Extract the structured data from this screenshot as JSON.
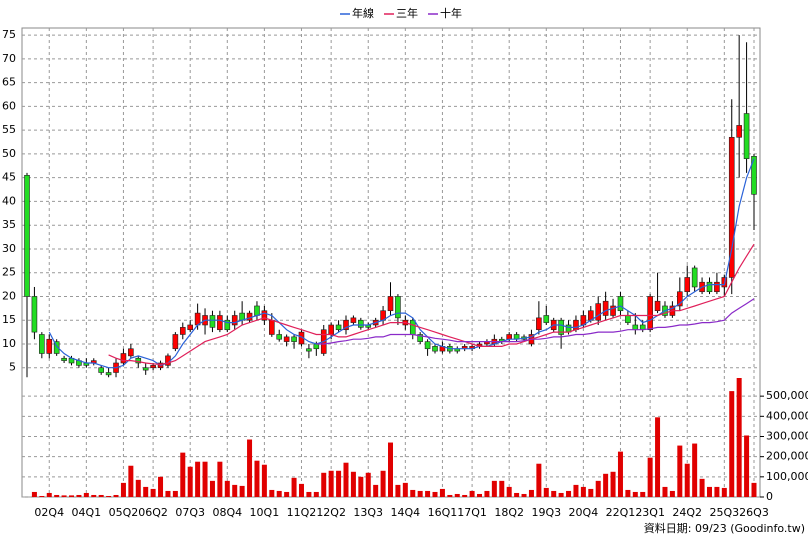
{
  "chart_data": {
    "type": "candlestick",
    "categories": [
      null,
      null,
      null,
      "02Q4",
      null,
      null,
      null,
      null,
      "04Q1",
      null,
      null,
      null,
      null,
      "05Q2",
      null,
      null,
      null,
      "06Q2",
      null,
      null,
      null,
      null,
      "07Q3",
      null,
      null,
      null,
      null,
      "08Q4",
      null,
      null,
      null,
      null,
      "10Q1",
      null,
      null,
      null,
      null,
      "11Q2",
      null,
      null,
      null,
      "12Q2",
      null,
      null,
      null,
      null,
      "13Q3",
      null,
      null,
      null,
      null,
      "14Q4",
      null,
      null,
      null,
      null,
      "16Q1",
      null,
      null,
      null,
      "17Q1",
      null,
      null,
      null,
      null,
      "18Q2",
      null,
      null,
      null,
      null,
      "19Q3",
      null,
      null,
      null,
      null,
      "20Q4",
      null,
      null,
      null,
      null,
      "22Q1",
      null,
      null,
      null,
      "23Q1",
      null,
      null,
      null,
      null,
      "24Q2",
      null,
      null,
      null,
      null,
      "25Q3",
      null,
      null,
      null,
      "26Q3"
    ],
    "open": [
      45.5,
      20,
      12,
      8,
      10.5,
      7,
      7,
      6.5,
      6,
      6,
      5,
      4,
      4,
      6,
      7.5,
      7,
      5,
      5,
      5,
      5.5,
      9,
      12,
      13,
      14,
      14,
      16,
      13,
      15,
      14,
      16.5,
      15,
      18,
      15,
      12,
      12,
      10.5,
      11.5,
      10,
      9,
      10,
      8,
      12,
      14,
      13,
      14.5,
      15,
      14,
      14,
      15,
      17,
      20,
      14,
      15,
      12,
      10.5,
      9.5,
      8.5,
      9.5,
      9,
      9,
      9,
      9.5,
      10,
      10,
      11,
      11,
      12,
      11.5,
      10,
      13,
      16,
      13,
      15,
      14,
      13,
      14,
      15,
      15,
      16,
      16,
      20,
      16,
      14,
      14,
      13,
      17,
      18,
      16,
      18,
      21,
      26,
      21,
      23,
      21,
      22,
      24,
      53.5,
      58.5,
      49.5
    ],
    "high": [
      46,
      22,
      12.5,
      12,
      11,
      7.5,
      7.5,
      7,
      7,
      7,
      5.5,
      5,
      7,
      9,
      10,
      7.5,
      6,
      6,
      6.5,
      8,
      12.5,
      14.5,
      15,
      18.5,
      17.5,
      17,
      17,
      16,
      17,
      19,
      17,
      19,
      18,
      16.5,
      13,
      12,
      12,
      13,
      10,
      10.5,
      14,
      14.5,
      15,
      16,
      16,
      15.5,
      14.5,
      15.5,
      18,
      23,
      20.5,
      16,
      15.5,
      12.5,
      11,
      10,
      10.5,
      10,
      9.5,
      10,
      10,
      10.5,
      11,
      12,
      11.5,
      12.5,
      12.5,
      12,
      13,
      19,
      18,
      15.5,
      15.5,
      15,
      16,
      17,
      18,
      20,
      21,
      19.5,
      21,
      17,
      16.5,
      15,
      20.5,
      25,
      19,
      19,
      24,
      26.5,
      26.5,
      24,
      24,
      25,
      24.5,
      61.5,
      75,
      73.5,
      50
    ],
    "low": [
      3,
      11,
      7,
      7,
      7.5,
      6,
      5.5,
      5,
      5,
      5.5,
      3.5,
      3,
      3,
      5.5,
      7,
      5,
      3.5,
      4.5,
      4.5,
      5,
      8.5,
      11,
      12.5,
      13,
      12,
      12.5,
      12.5,
      12.5,
      13,
      14,
      14.5,
      15,
      14,
      11.5,
      10.5,
      9.5,
      9,
      9.5,
      7,
      7.5,
      7.5,
      11,
      12.5,
      12,
      14,
      13,
      13,
      13.5,
      14,
      16,
      14,
      13,
      11,
      10,
      7.5,
      8,
      8,
      8,
      8,
      8.5,
      8.5,
      9,
      9.5,
      9.5,
      10,
      10.5,
      10.5,
      10.5,
      9.5,
      12,
      14,
      12.5,
      9,
      12,
      12.5,
      13.5,
      14.5,
      14,
      15,
      15.5,
      16,
      14,
      12,
      12.5,
      12.5,
      16.5,
      15.5,
      15.5,
      17,
      20,
      21,
      20.5,
      20.5,
      20.5,
      20,
      20.5,
      45,
      46,
      34
    ],
    "close": [
      20,
      12.5,
      8,
      11,
      8,
      6.5,
      6,
      5.5,
      5.5,
      6.5,
      4,
      3.5,
      6,
      8,
      9,
      6,
      4.5,
      5.5,
      6,
      7.5,
      12,
      13.5,
      14,
      16.5,
      16,
      13.5,
      16,
      13,
      16,
      15,
      16.5,
      16,
      17,
      15,
      11,
      11.5,
      10.5,
      12.5,
      8.5,
      9,
      13,
      14,
      13,
      15,
      15.5,
      13.5,
      13.5,
      15,
      17,
      20,
      15.5,
      15,
      12,
      10.5,
      9,
      8.5,
      9.5,
      8.5,
      8.5,
      9.5,
      9.5,
      10,
      10.5,
      11,
      10.5,
      12,
      11,
      11,
      12,
      15.5,
      14.5,
      15,
      12,
      12.5,
      15,
      16,
      17,
      18.5,
      19,
      18,
      17,
      14.5,
      13,
      13,
      20,
      19,
      16,
      18,
      21,
      24,
      22,
      23,
      21,
      23,
      24,
      53.5,
      56,
      49,
      41.5
    ],
    "volume": [
      0,
      25000,
      5000,
      20000,
      10000,
      8000,
      8000,
      10000,
      20000,
      10000,
      10000,
      5000,
      10000,
      70000,
      155000,
      85000,
      50000,
      40000,
      100000,
      30000,
      30000,
      220000,
      150000,
      175000,
      175000,
      80000,
      175000,
      80000,
      60000,
      55000,
      285000,
      180000,
      160000,
      35000,
      30000,
      25000,
      95000,
      65000,
      25000,
      25000,
      120000,
      130000,
      130000,
      170000,
      125000,
      100000,
      120000,
      60000,
      130000,
      270000,
      60000,
      70000,
      35000,
      30000,
      30000,
      25000,
      40000,
      10000,
      15000,
      10000,
      30000,
      15000,
      30000,
      80000,
      80000,
      50000,
      20000,
      15000,
      35000,
      165000,
      45000,
      30000,
      20000,
      30000,
      60000,
      50000,
      40000,
      80000,
      115000,
      125000,
      225000,
      35000,
      25000,
      25000,
      195000,
      395000,
      50000,
      30000,
      255000,
      165000,
      265000,
      90000,
      50000,
      50000,
      45000,
      525000,
      590000,
      305000,
      70000
    ],
    "series": [
      {
        "name": "年線",
        "color": "#2a62d8",
        "values": [
          null,
          null,
          null,
          12.5,
          9.5,
          8,
          7,
          6.5,
          6,
          6,
          5.5,
          5,
          5,
          5.5,
          7,
          7.5,
          7,
          6.5,
          5.5,
          6,
          7.5,
          10,
          12,
          14,
          15,
          15,
          15,
          14.5,
          14.5,
          15,
          15.5,
          16,
          16.5,
          16,
          14.5,
          13,
          12,
          11.5,
          10.5,
          10,
          10.5,
          11.5,
          12.5,
          13.5,
          14,
          14,
          14,
          14.5,
          15,
          16,
          16.5,
          16.5,
          15.5,
          13,
          11.5,
          10,
          9.5,
          9,
          9,
          9,
          9,
          9.5,
          9.5,
          10,
          10.5,
          11,
          11,
          11.2,
          11.5,
          12.5,
          13,
          14,
          14,
          13.5,
          13.5,
          14,
          15,
          16,
          17,
          17.5,
          18,
          17,
          16,
          14.5,
          15,
          16,
          17,
          17.5,
          18.5,
          20,
          21,
          22,
          22.5,
          22.5,
          22.5,
          30,
          39,
          45,
          49
        ]
      },
      {
        "name": "三年",
        "color": "#e0205a",
        "values": [
          null,
          null,
          null,
          null,
          null,
          null,
          null,
          null,
          null,
          null,
          null,
          7.7,
          7,
          6.5,
          6.5,
          6.3,
          6,
          5.8,
          5.7,
          6,
          6.5,
          7.5,
          8.5,
          9.5,
          10.5,
          11,
          11.5,
          12,
          13,
          14,
          14.5,
          15,
          15.5,
          15,
          14.5,
          14,
          13.5,
          13,
          12.5,
          12,
          12,
          12,
          11.5,
          11.5,
          12,
          12.5,
          13,
          13.5,
          14,
          14.5,
          14.5,
          14.5,
          14,
          13.5,
          13,
          12.5,
          12,
          11.5,
          11,
          10.5,
          10,
          9.5,
          9.5,
          9.5,
          9.5,
          10,
          10,
          10.5,
          11,
          11.5,
          12,
          12.5,
          12.5,
          12.5,
          13,
          13.5,
          14,
          14.5,
          15,
          15.5,
          16,
          16,
          16,
          16,
          16,
          16,
          16.5,
          17,
          17,
          17.5,
          18,
          18.5,
          19,
          19.5,
          20,
          23,
          26,
          28.5,
          31
        ]
      },
      {
        "name": "十年",
        "color": "#8a2ac8",
        "values": [
          null,
          null,
          null,
          null,
          null,
          null,
          null,
          null,
          null,
          null,
          null,
          null,
          null,
          null,
          null,
          null,
          null,
          null,
          null,
          null,
          null,
          null,
          null,
          null,
          null,
          null,
          null,
          null,
          null,
          null,
          null,
          null,
          null,
          null,
          null,
          null,
          null,
          null,
          null,
          10,
          10,
          10.2,
          10.5,
          10.7,
          11,
          11,
          11.2,
          11.5,
          11.5,
          12,
          12,
          12,
          12,
          11.7,
          11.5,
          11.2,
          11,
          10.8,
          10.5,
          10.5,
          10.5,
          10.5,
          10.5,
          10.5,
          10.5,
          10.5,
          10.5,
          10.7,
          11,
          11,
          11.2,
          11.5,
          11.5,
          11.7,
          12,
          12,
          12.2,
          12.5,
          12.5,
          12.5,
          12.7,
          13,
          13,
          13,
          13.2,
          13.5,
          13.5,
          13.7,
          14,
          14,
          14.2,
          14.5,
          14.5,
          14.7,
          15,
          16.5,
          17.5,
          18.5,
          19.5
        ]
      }
    ],
    "up_color": "#ff0000",
    "down_color": "#22dd22",
    "volume_color": "#e00000",
    "ylim": [
      2,
      76.5
    ],
    "yticks": [
      5,
      10,
      15,
      20,
      25,
      30,
      35,
      40,
      45,
      50,
      55,
      60,
      65,
      70,
      75
    ],
    "y2lim": [
      0,
      590000
    ],
    "y2ticks": [
      0,
      {
        "value": 100000,
        "label": "100,000"
      },
      {
        "value": 200000,
        "label": "200,000"
      },
      {
        "value": 300000,
        "label": "300,000"
      },
      {
        "value": 400000,
        "label": "400,000"
      },
      {
        "value": 500000,
        "label": "500,000"
      }
    ],
    "grid": true,
    "source": "資料日期: 09/23 (Goodinfo.tw)"
  }
}
